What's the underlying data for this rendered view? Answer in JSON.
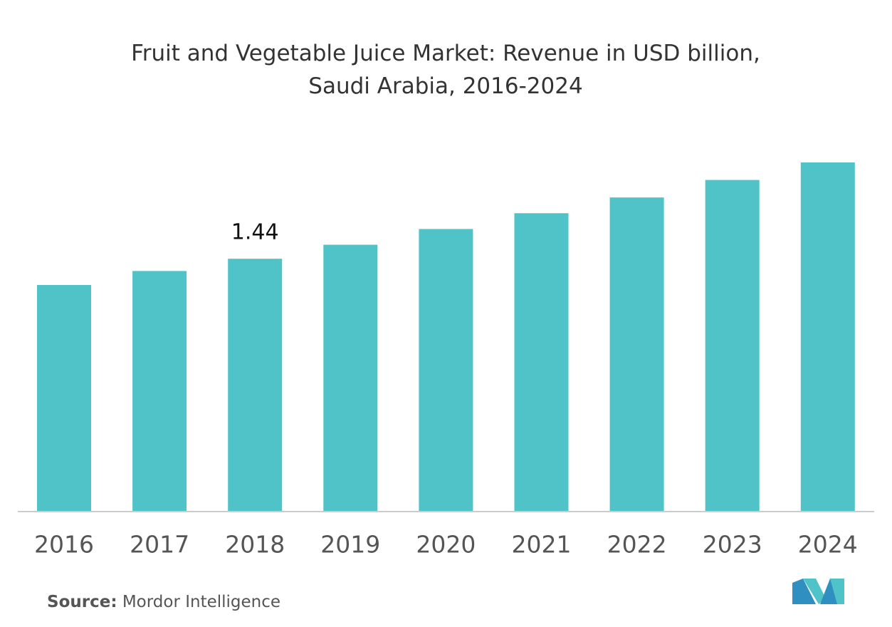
{
  "chart_data": {
    "type": "bar",
    "title": "Fruit and Vegetable Juice Market: Revenue in USD billion, Saudi Arabia, 2016-2024",
    "categories": [
      "2016",
      "2017",
      "2018",
      "2019",
      "2020",
      "2021",
      "2022",
      "2023",
      "2024"
    ],
    "values": [
      1.29,
      1.37,
      1.44,
      1.52,
      1.61,
      1.7,
      1.79,
      1.89,
      1.99
    ],
    "value_labels": [
      null,
      null,
      "1.44",
      null,
      null,
      null,
      null,
      null,
      null
    ],
    "color": "#50c3c8"
  },
  "source": {
    "label": "Source:",
    "text": "Mordor Intelligence"
  }
}
